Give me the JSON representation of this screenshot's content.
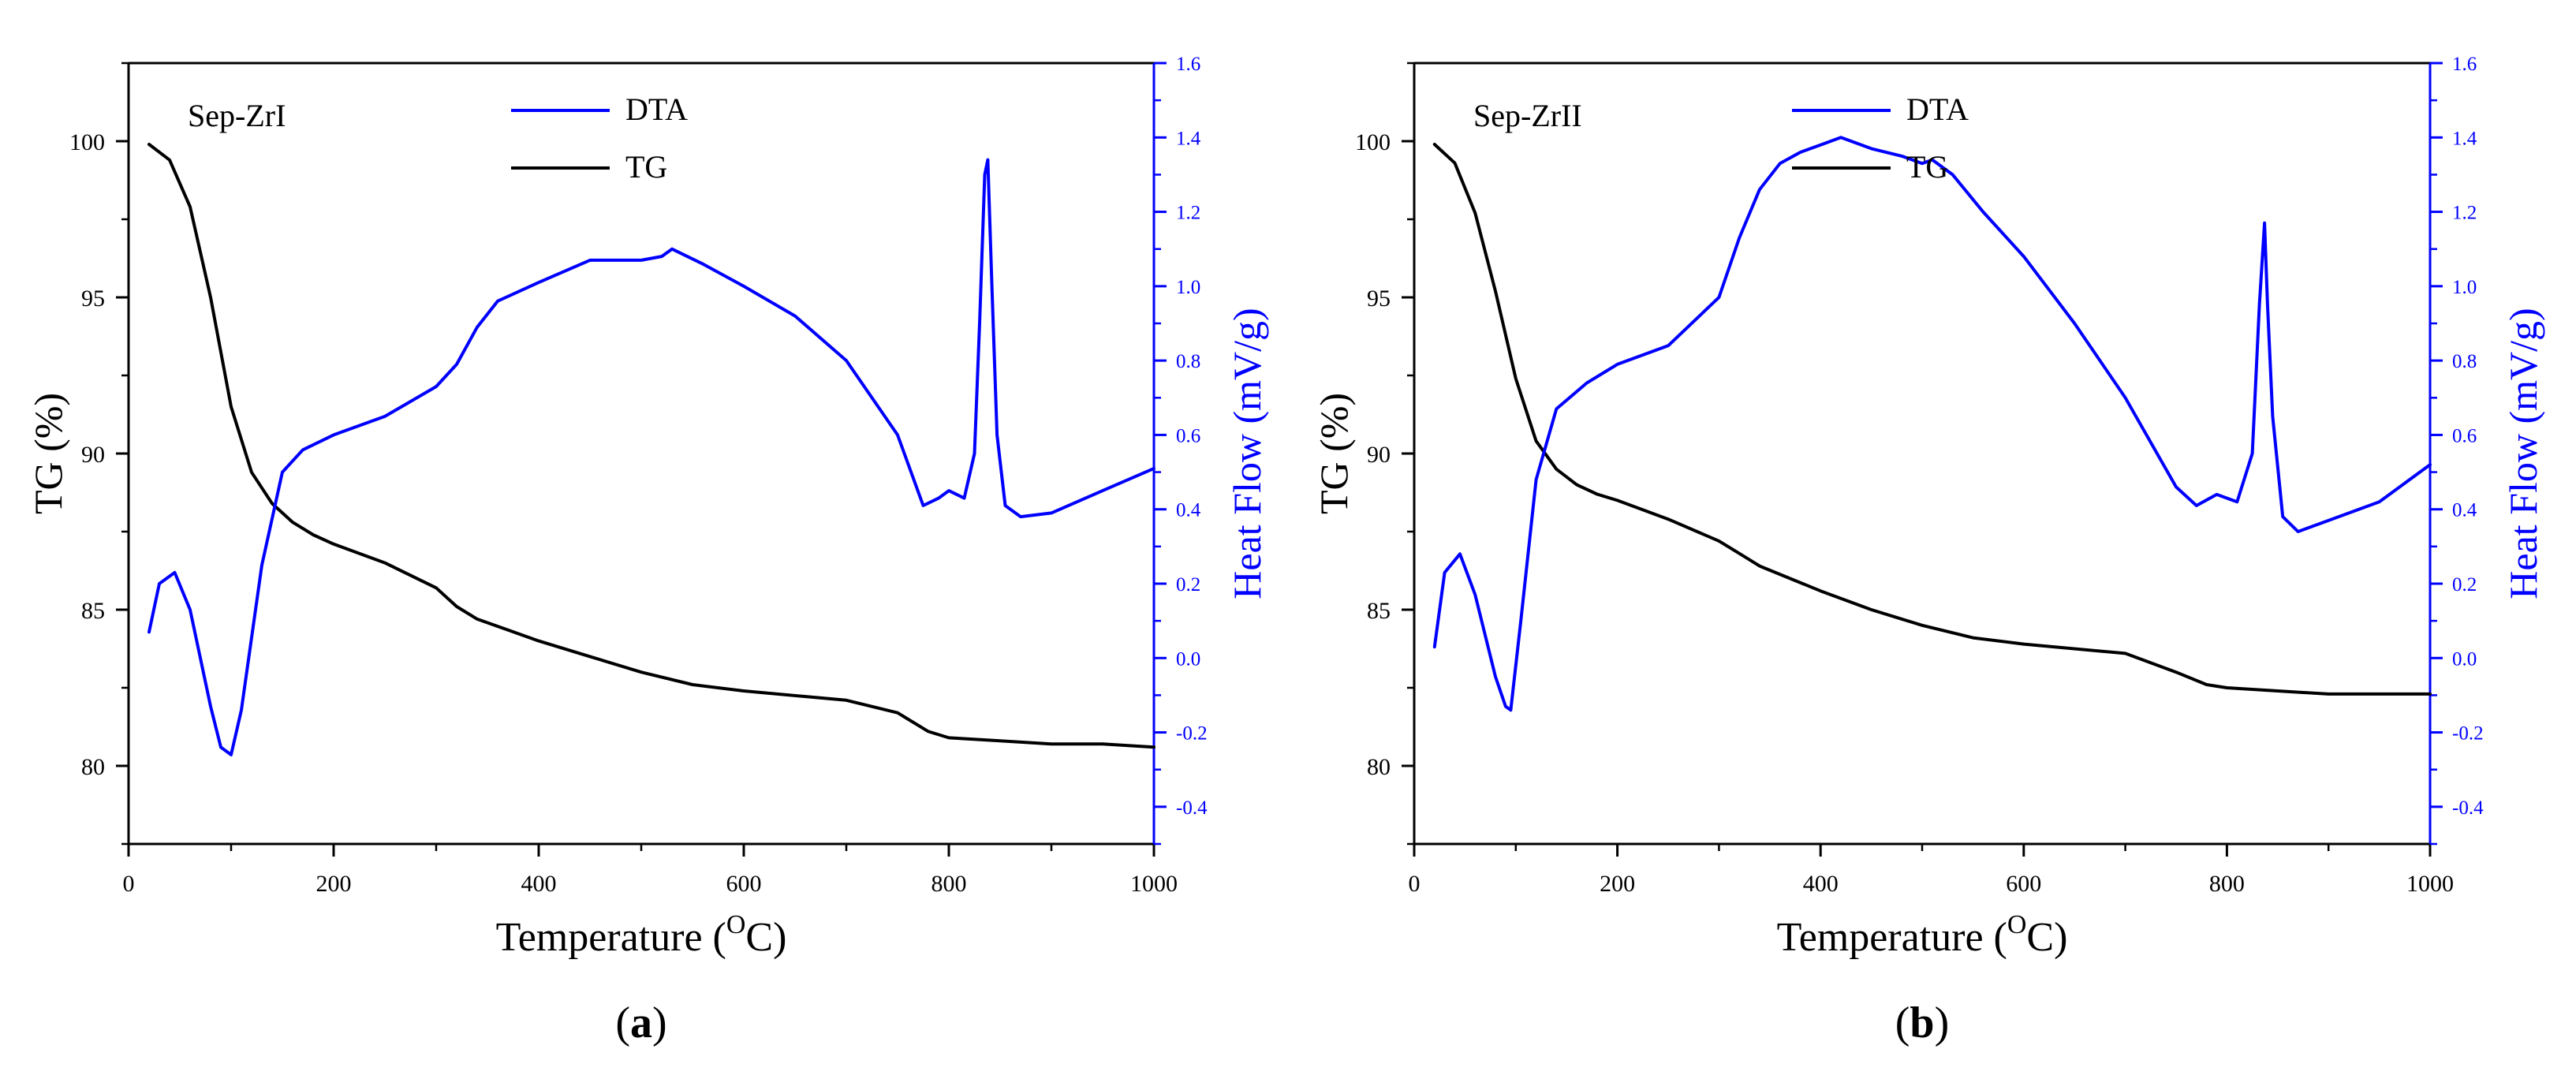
{
  "colors": {
    "tg": "#000000",
    "dta": "#0000ff",
    "axis": "#000000"
  },
  "chart_data": [
    {
      "type": "line",
      "panel_label": "a",
      "sample_label": "Sep-ZrI",
      "xlabel": "Temperature",
      "xlabel_unit_sup": "O",
      "xlabel_unit": "C",
      "ylabel": "TG (%)",
      "y2label": "Heat Flow  (mV/g)",
      "xlim": [
        0,
        1000
      ],
      "ylim": [
        77.5,
        102.5
      ],
      "y2lim": [
        -0.5,
        1.6
      ],
      "x_ticks": [
        "0",
        "200",
        "400",
        "600",
        "800",
        "1000"
      ],
      "y_ticks": [
        "80",
        "85",
        "90",
        "95",
        "100"
      ],
      "y2_ticks": [
        "-0.4",
        "-0.2",
        "0.0",
        "0.2",
        "0.4",
        "0.6",
        "0.8",
        "1.0",
        "1.2",
        "1.4",
        "1.6"
      ],
      "legend": [
        "DTA",
        "TG"
      ],
      "series": [
        {
          "name": "TG",
          "axis": "left",
          "x": [
            20,
            40,
            60,
            80,
            100,
            120,
            140,
            160,
            180,
            200,
            250,
            300,
            320,
            340,
            400,
            450,
            500,
            550,
            600,
            700,
            750,
            780,
            800,
            850,
            900,
            950,
            1000
          ],
          "y": [
            99.9,
            99.4,
            97.9,
            95.0,
            91.5,
            89.4,
            88.4,
            87.8,
            87.4,
            87.1,
            86.5,
            85.7,
            85.1,
            84.7,
            84.0,
            83.5,
            83.0,
            82.6,
            82.4,
            82.1,
            81.7,
            81.1,
            80.9,
            80.8,
            80.7,
            80.7,
            80.6
          ]
        },
        {
          "name": "DTA",
          "axis": "right",
          "x": [
            20,
            30,
            45,
            60,
            80,
            90,
            100,
            110,
            130,
            150,
            170,
            200,
            250,
            300,
            320,
            340,
            360,
            400,
            450,
            500,
            520,
            530,
            560,
            600,
            650,
            700,
            750,
            775,
            790,
            800,
            815,
            825,
            830,
            835,
            838,
            842,
            847,
            855,
            870,
            900,
            950,
            1000
          ],
          "y": [
            0.07,
            0.2,
            0.23,
            0.13,
            -0.13,
            -0.24,
            -0.26,
            -0.14,
            0.25,
            0.5,
            0.56,
            0.6,
            0.65,
            0.73,
            0.79,
            0.89,
            0.96,
            1.01,
            1.07,
            1.07,
            1.08,
            1.1,
            1.06,
            1.0,
            0.92,
            0.8,
            0.6,
            0.41,
            0.43,
            0.45,
            0.43,
            0.55,
            0.9,
            1.3,
            1.34,
            1.0,
            0.6,
            0.41,
            0.38,
            0.39,
            0.45,
            0.51
          ]
        }
      ]
    },
    {
      "type": "line",
      "panel_label": "b",
      "sample_label": "Sep-ZrII",
      "xlabel": "Temperature",
      "xlabel_unit_sup": "O",
      "xlabel_unit": "C",
      "ylabel": "TG (%)",
      "y2label": "Heat Flow  (mV/g)",
      "xlim": [
        0,
        1000
      ],
      "ylim": [
        77.5,
        102.5
      ],
      "y2lim": [
        -0.5,
        1.6
      ],
      "x_ticks": [
        "0",
        "200",
        "400",
        "600",
        "800",
        "1000"
      ],
      "y_ticks": [
        "80",
        "85",
        "90",
        "95",
        "100"
      ],
      "y2_ticks": [
        "-0.4",
        "-0.2",
        "0.0",
        "0.2",
        "0.4",
        "0.6",
        "0.8",
        "1.0",
        "1.2",
        "1.4",
        "1.6"
      ],
      "legend": [
        "DTA",
        "TG"
      ],
      "series": [
        {
          "name": "TG",
          "axis": "left",
          "x": [
            20,
            40,
            60,
            80,
            100,
            120,
            140,
            160,
            180,
            200,
            250,
            300,
            320,
            340,
            400,
            450,
            500,
            550,
            600,
            700,
            750,
            780,
            800,
            850,
            900,
            950,
            1000
          ],
          "y": [
            99.9,
            99.3,
            97.7,
            95.2,
            92.4,
            90.4,
            89.5,
            89.0,
            88.7,
            88.5,
            87.9,
            87.2,
            86.8,
            86.4,
            85.6,
            85.0,
            84.5,
            84.1,
            83.9,
            83.6,
            83.0,
            82.6,
            82.5,
            82.4,
            82.3,
            82.3,
            82.3
          ]
        },
        {
          "name": "DTA",
          "axis": "right",
          "x": [
            20,
            30,
            45,
            60,
            80,
            90,
            95,
            105,
            120,
            140,
            170,
            200,
            250,
            300,
            320,
            340,
            360,
            380,
            400,
            420,
            450,
            480,
            500,
            510,
            530,
            560,
            600,
            650,
            700,
            750,
            770,
            790,
            810,
            825,
            832,
            837,
            840,
            845,
            855,
            870,
            900,
            950,
            1000
          ],
          "y": [
            0.03,
            0.23,
            0.28,
            0.17,
            -0.05,
            -0.13,
            -0.14,
            0.1,
            0.48,
            0.67,
            0.74,
            0.79,
            0.84,
            0.97,
            1.13,
            1.26,
            1.33,
            1.36,
            1.38,
            1.4,
            1.37,
            1.35,
            1.33,
            1.34,
            1.3,
            1.2,
            1.08,
            0.9,
            0.7,
            0.46,
            0.41,
            0.44,
            0.42,
            0.55,
            0.95,
            1.17,
            0.95,
            0.65,
            0.38,
            0.34,
            0.37,
            0.42,
            0.52
          ]
        }
      ]
    }
  ]
}
